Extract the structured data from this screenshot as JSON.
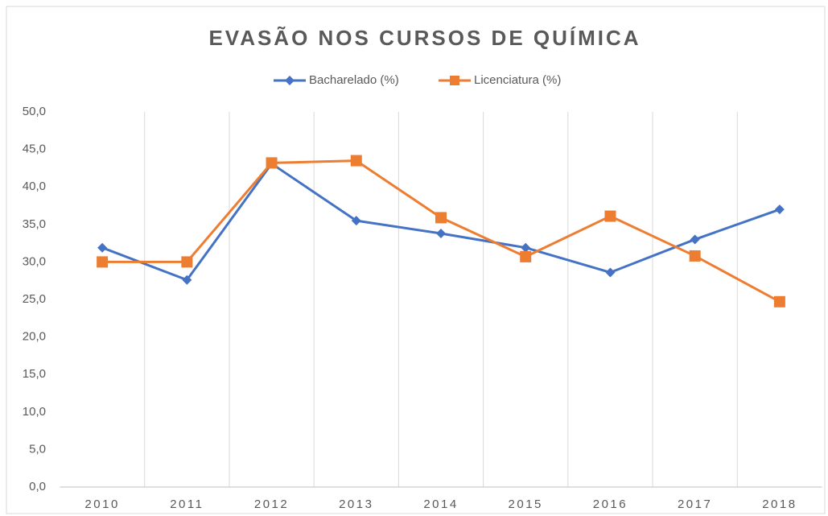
{
  "chart_data": {
    "type": "line",
    "title": "EVASÃO NOS CURSOS DE QUÍMICA",
    "categories": [
      "2010",
      "2011",
      "2012",
      "2013",
      "2014",
      "2015",
      "2016",
      "2017",
      "2018"
    ],
    "series": [
      {
        "name": "Bacharelado (%)",
        "color": "#4472c4",
        "marker": "diamond",
        "values": [
          31.9,
          27.6,
          43.1,
          35.5,
          33.8,
          31.9,
          28.6,
          33.0,
          37.0
        ]
      },
      {
        "name": "Licenciatura (%)",
        "color": "#ed7d31",
        "marker": "square",
        "values": [
          30.0,
          30.0,
          43.2,
          43.5,
          35.9,
          30.7,
          36.1,
          30.8,
          24.7
        ]
      }
    ],
    "ylim": [
      0,
      50
    ],
    "yticks": [
      {
        "value": 0,
        "label": "0,0"
      },
      {
        "value": 5,
        "label": "5,0"
      },
      {
        "value": 10,
        "label": "10,0"
      },
      {
        "value": 15,
        "label": "15,0"
      },
      {
        "value": 20,
        "label": "20,0"
      },
      {
        "value": 25,
        "label": "25,0"
      },
      {
        "value": 30,
        "label": "30,0"
      },
      {
        "value": 35,
        "label": "35,0"
      },
      {
        "value": 40,
        "label": "40,0"
      },
      {
        "value": 45,
        "label": "45,0"
      },
      {
        "value": 50,
        "label": "50,0"
      }
    ],
    "legend": "top",
    "grid": "vertical"
  }
}
